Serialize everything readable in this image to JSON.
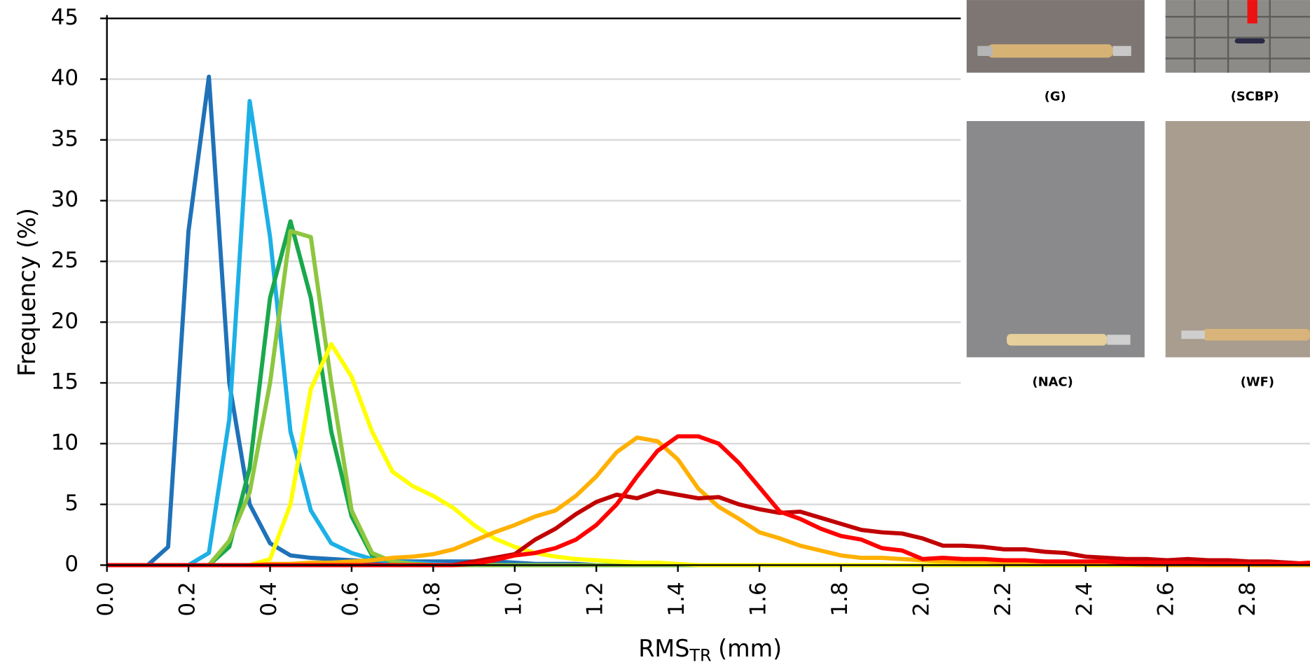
{
  "chart_data": {
    "type": "line",
    "x_label": "RMS",
    "x_label_subscript": "TR",
    "x_label_unit": "(mm)",
    "y_label": "Frequency (%)",
    "x": [
      0,
      0.05,
      0.1,
      0.15,
      0.2,
      0.25,
      0.3,
      0.35,
      0.4,
      0.45,
      0.5,
      0.55,
      0.6,
      0.65,
      0.7,
      0.75,
      0.8,
      0.85,
      0.9,
      0.95,
      1,
      1.05,
      1.1,
      1.15,
      1.2,
      1.25,
      1.3,
      1.35,
      1.4,
      1.45,
      1.5,
      1.55,
      1.6,
      1.65,
      1.7,
      1.75,
      1.8,
      1.85,
      1.9,
      1.95,
      2,
      2.05,
      2.1,
      2.15,
      2.2,
      2.25,
      2.3,
      2.35,
      2.4,
      2.45,
      2.5,
      2.55,
      2.6,
      2.65,
      2.7,
      2.75,
      2.8,
      2.85,
      2.9,
      2.95
    ],
    "series": [
      {
        "color": "#1f72b8",
        "values": [
          0,
          0,
          0,
          1.5,
          27.5,
          40.2,
          15,
          5,
          1.8,
          0.8,
          0.6,
          0.5,
          0.4,
          0.3,
          0.3,
          0.3,
          0.3,
          0.3,
          0.3,
          0.3,
          0.2,
          0.1,
          0.1,
          0.1,
          0,
          0,
          0,
          0,
          0,
          0,
          0,
          0,
          0,
          0,
          0,
          0,
          0,
          0,
          0,
          0,
          0,
          0,
          0,
          0,
          0,
          0,
          0,
          0,
          0,
          0,
          0,
          0,
          0,
          0,
          0,
          0,
          0,
          0,
          0,
          0
        ]
      },
      {
        "color": "#1cb0e6",
        "values": [
          0,
          0,
          0,
          0,
          0,
          1,
          12,
          38.2,
          27,
          11,
          4.5,
          1.8,
          1,
          0.5,
          0.3,
          0.2,
          0.1,
          0,
          0,
          0,
          0,
          0,
          0,
          0,
          0,
          0,
          0,
          0,
          0,
          0,
          0,
          0,
          0,
          0,
          0,
          0,
          0,
          0,
          0,
          0,
          0,
          0,
          0,
          0,
          0,
          0,
          0,
          0,
          0,
          0,
          0,
          0,
          0,
          0,
          0,
          0,
          0,
          0,
          0,
          0
        ]
      },
      {
        "color": "#1aa84c",
        "values": [
          0,
          0,
          0,
          0,
          0,
          0,
          1.5,
          8,
          22,
          28.3,
          22,
          11,
          4,
          0.8,
          0.3,
          0.1,
          0,
          0,
          0,
          0,
          0,
          0,
          0,
          0,
          0,
          0,
          0,
          0,
          0,
          0,
          0,
          0,
          0,
          0,
          0,
          0,
          0,
          0,
          0,
          0,
          0,
          0,
          0,
          0,
          0,
          0,
          0,
          0,
          0,
          0,
          0,
          0,
          0,
          0,
          0,
          0,
          0,
          0,
          0,
          0
        ]
      },
      {
        "color": "#8dc63f",
        "values": [
          0,
          0,
          0,
          0,
          0,
          0,
          2,
          6,
          15,
          27.5,
          27,
          15,
          4.5,
          1,
          0.3,
          0.1,
          0,
          0,
          0,
          0,
          0,
          0,
          0,
          0,
          0,
          0,
          0,
          0,
          0,
          0,
          0,
          0,
          0,
          0,
          0,
          0,
          0,
          0,
          0,
          0,
          0,
          0,
          0,
          0,
          0,
          0,
          0,
          0,
          0,
          0,
          0,
          0,
          0,
          0,
          0,
          0,
          0,
          0,
          0,
          0
        ]
      },
      {
        "color": "#ffff00",
        "values": [
          0,
          0,
          0,
          0,
          0,
          0,
          0,
          0,
          0.5,
          5,
          14.5,
          18.2,
          15.5,
          11,
          7.7,
          6.5,
          5.7,
          4.7,
          3.3,
          2.2,
          1.5,
          1,
          0.7,
          0.5,
          0.4,
          0.3,
          0.2,
          0.2,
          0.1,
          0,
          0,
          0,
          0,
          0,
          0,
          0,
          0,
          0,
          0,
          0,
          0,
          0,
          0,
          0,
          0,
          0,
          0,
          0,
          0,
          0,
          0,
          0,
          0,
          0,
          0,
          0,
          0,
          0,
          0,
          0
        ]
      },
      {
        "color": "#ffb000",
        "values": [
          0,
          0,
          0,
          0,
          0,
          0,
          0,
          0,
          0.1,
          0.1,
          0.2,
          0.2,
          0.3,
          0.4,
          0.6,
          0.7,
          0.9,
          1.3,
          2,
          2.7,
          3.3,
          4,
          4.5,
          5.7,
          7.3,
          9.3,
          10.5,
          10.2,
          8.7,
          6.3,
          4.8,
          3.8,
          2.7,
          2.2,
          1.6,
          1.2,
          0.8,
          0.6,
          0.6,
          0.5,
          0.4,
          0.3,
          0.3,
          0.3,
          0.2,
          0.2,
          0.2,
          0.2,
          0.1,
          0.1,
          0.1,
          0,
          0,
          0,
          0,
          0,
          0,
          0,
          0,
          0
        ]
      },
      {
        "color": "#c00000",
        "values": [
          0,
          0,
          0,
          0,
          0,
          0,
          0,
          0,
          0,
          0,
          0,
          0,
          0,
          0,
          0,
          0,
          0,
          0,
          0.3,
          0.6,
          0.9,
          2.1,
          3,
          4.2,
          5.2,
          5.8,
          5.5,
          6.1,
          5.8,
          5.5,
          5.6,
          5,
          4.6,
          4.3,
          4.4,
          3.9,
          3.4,
          2.9,
          2.7,
          2.6,
          2.2,
          1.6,
          1.6,
          1.5,
          1.3,
          1.3,
          1.1,
          1,
          0.7,
          0.6,
          0.5,
          0.5,
          0.4,
          0.5,
          0.4,
          0.4,
          0.3,
          0.3,
          0.2,
          0.1
        ]
      },
      {
        "color": "#ff0000",
        "values": [
          0,
          0,
          0,
          0,
          0,
          0,
          0,
          0,
          0,
          0,
          0,
          0,
          0,
          0,
          0,
          0,
          0,
          0,
          0.1,
          0.4,
          0.8,
          1,
          1.4,
          2.1,
          3.3,
          5,
          7.3,
          9.4,
          10.6,
          10.6,
          10,
          8.4,
          6.4,
          4.4,
          3.8,
          3,
          2.4,
          2.1,
          1.4,
          1.2,
          0.5,
          0.6,
          0.5,
          0.5,
          0.4,
          0.4,
          0.3,
          0.3,
          0.3,
          0.3,
          0.2,
          0.2,
          0.2,
          0.2,
          0.1,
          0.1,
          0.1,
          0.1,
          0.1,
          0.2
        ]
      }
    ],
    "xlim": [
      0,
      2.95
    ],
    "xticks": [
      {
        "value": 0,
        "label": "0.0"
      },
      0.2,
      0.4,
      0.6,
      0.8,
      {
        "value": 1,
        "label": "1.0"
      },
      1.2,
      1.4,
      1.6,
      1.8,
      {
        "value": 2,
        "label": "2.0"
      },
      2.2,
      2.4,
      2.6,
      2.8
    ],
    "ylim": [
      0,
      45
    ],
    "yticks": [
      0,
      5,
      10,
      15,
      20,
      25,
      30,
      35,
      40,
      45
    ],
    "grid": true
  },
  "photos": [
    {
      "label": "(G)"
    },
    {
      "label": "(SCBP)"
    },
    {
      "label": "(NAC)"
    },
    {
      "label": "(WF)"
    }
  ]
}
